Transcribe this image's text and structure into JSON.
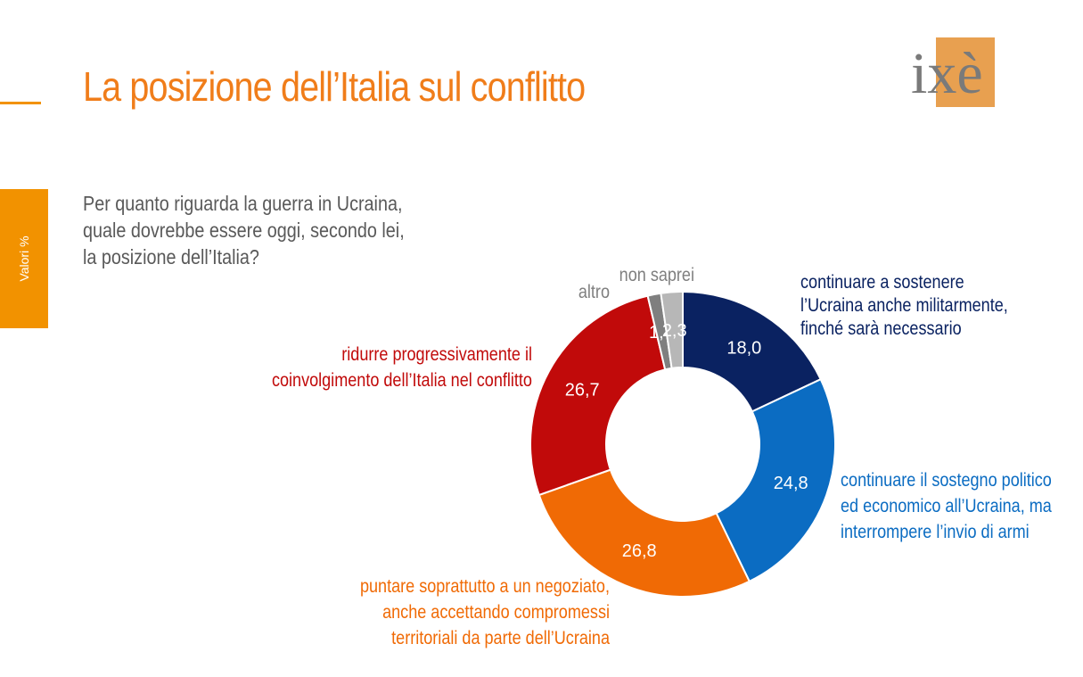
{
  "header": {
    "title": "La posizione dell’Italia sul conflitto",
    "logo_text": "ixè"
  },
  "side_tab": {
    "label": "Valori %"
  },
  "question": "Per quanto riguarda la guerra in Ucraina, quale dovrebbe essere oggi, secondo lei, la posizione dell’Italia?",
  "colors": {
    "accent": "#f29200",
    "title": "#f07d1a",
    "logo_bg": "#e8a050",
    "logo_text": "#7a7a7a"
  },
  "chart_data": {
    "type": "pie",
    "subtype": "donut",
    "unit": "%",
    "series": [
      {
        "name": "continuare a sostenere l’Ucraina anche militarmente, finché sarà necessario",
        "label_lines": [
          "continuare a sostenere",
          "l’Ucraina anche militarmente,",
          "finché sarà necessario"
        ],
        "value": 18.0,
        "value_label": "18,0",
        "color": "#0a2261",
        "label_color": "#0a2261"
      },
      {
        "name": "continuare il sostegno politico ed economico all’Ucraina, ma interrompere l’invio di armi",
        "label_lines": [
          "continuare il sostegno politico",
          "ed economico all’Ucraina, ma",
          "interrompere l’invio di armi"
        ],
        "value": 24.8,
        "value_label": "24,8",
        "color": "#0b6cc2",
        "label_color": "#0b6cc2"
      },
      {
        "name": "puntare soprattutto a un negoziato, anche accettando compromessi territoriali da parte dell’Ucraina",
        "label_lines": [
          "puntare soprattutto a un negoziato,",
          "anche accettando compromessi",
          "territoriali da parte dell’Ucraina"
        ],
        "value": 26.8,
        "value_label": "26,8",
        "color": "#f06a05",
        "label_color": "#f06a05"
      },
      {
        "name": "ridurre progressivamente il coinvolgimento dell’Italia nel conflitto",
        "label_lines": [
          "ridurre progressivamente il",
          "coinvolgimento dell’Italia nel conflitto"
        ],
        "value": 26.7,
        "value_label": "26,7",
        "color": "#c10a0a",
        "label_color": "#c10a0a"
      },
      {
        "name": "altro",
        "label_lines": [
          "altro"
        ],
        "value": 1.4,
        "value_label": "1,4",
        "color": "#7f7f7f",
        "label_color": "#7f7f7f"
      },
      {
        "name": "non saprei",
        "label_lines": [
          "non saprei"
        ],
        "value": 2.3,
        "value_label": "2,3",
        "color": "#b7b7b7",
        "label_color": "#7f7f7f"
      }
    ]
  }
}
